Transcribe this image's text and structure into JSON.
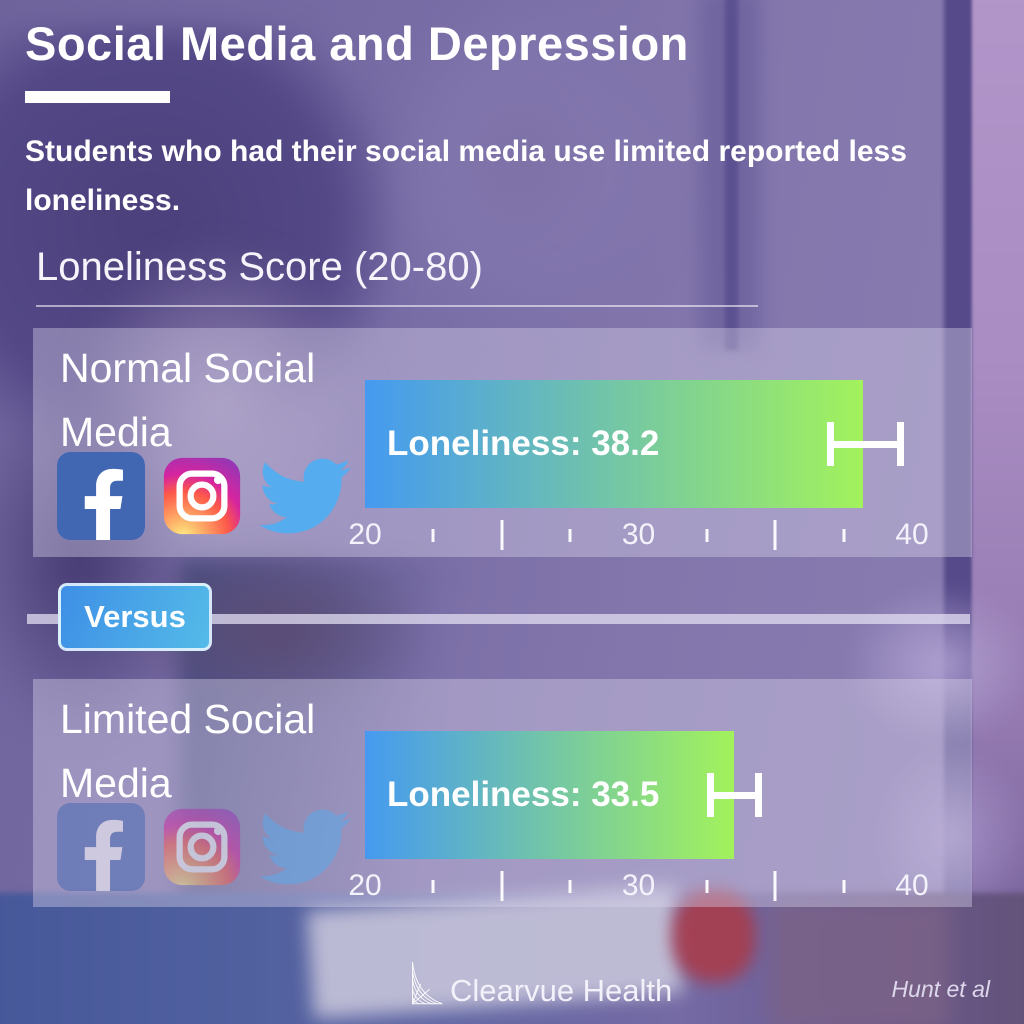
{
  "header": {
    "title": "Social Media and Depression",
    "subtitle": "Students who had their social media use limited reported less loneliness."
  },
  "section": {
    "heading": "Loneliness Score (20-80)"
  },
  "versus": {
    "label": "Versus"
  },
  "footer": {
    "brand": "Clearvue Health",
    "source": "Hunt et al"
  },
  "icons": {
    "panel_icons": [
      "facebook-icon",
      "instagram-icon",
      "twitter-icon"
    ],
    "brand_icon": "clearvue-sail-logo"
  },
  "colors": {
    "bar_gradient_start": "#459AF0",
    "bar_gradient_end": "#A2F25C",
    "versus_gradient_start": "#3E8FE6",
    "versus_gradient_end": "#54BBE8",
    "facebook_blue": "#4267B2",
    "twitter_blue": "#55ACEE",
    "background_purple": "#7B6FA6",
    "panel_overlay": "rgba(217,212,234,0.40)"
  },
  "chart_data": {
    "type": "bar",
    "orientation": "horizontal",
    "title": "Loneliness Score (20-80)",
    "categories": [
      "Normal Social Media",
      "Limited Social Media"
    ],
    "values": [
      38.2,
      33.5
    ],
    "bar_labels": [
      "Loneliness: 38.2",
      "Loneliness: 33.5"
    ],
    "error_bars": [
      {
        "low": 36.9,
        "high": 39.7
      },
      {
        "low": 32.5,
        "high": 34.5
      }
    ],
    "axis": {
      "min": 20,
      "max": 40,
      "tick_labels": [
        20,
        30,
        40
      ],
      "major_ticks": [
        25,
        35
      ],
      "minor_ticks": [
        22.5,
        27.5,
        32.5,
        37.5
      ]
    },
    "legend": null,
    "grid": false,
    "source": "Hunt et al"
  }
}
